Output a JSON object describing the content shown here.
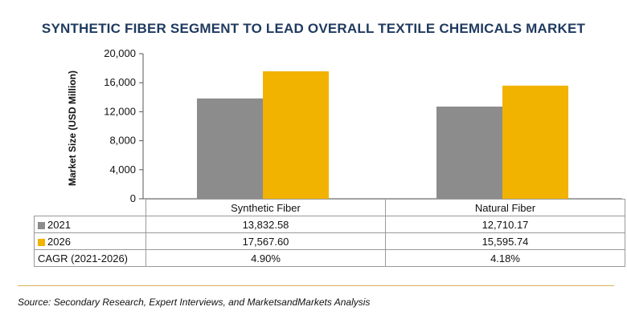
{
  "chart_data": {
    "type": "bar",
    "title": "SYNTHETIC FIBER SEGMENT TO LEAD OVERALL TEXTILE CHEMICALS MARKET",
    "xlabel": "",
    "ylabel": "Market Size (USD Million)",
    "categories": [
      "Synthetic Fiber",
      "Natural Fiber"
    ],
    "series": [
      {
        "name": "2021",
        "values": [
          13832.58,
          12710.17
        ],
        "color": "#8c8c8c"
      },
      {
        "name": "2026",
        "values": [
          17567.6,
          15595.74
        ],
        "color": "#f2b200"
      }
    ],
    "ylim": [
      0,
      20000
    ],
    "yticks": [
      "20,000",
      "16,000",
      "12,000",
      "8,000",
      "4,000",
      "0"
    ],
    "ytick_values": [
      20000,
      16000,
      12000,
      8000,
      4000,
      0
    ],
    "table": {
      "rows": [
        {
          "label": "2021",
          "values": [
            "13,832.58",
            "12,710.17"
          ]
        },
        {
          "label": "2026",
          "values": [
            "17,567.60",
            "15,595.74"
          ]
        },
        {
          "label": "CAGR (2021-2026)",
          "values": [
            "4.90%",
            "4.18%"
          ]
        }
      ]
    },
    "grid": false,
    "legend": "data table"
  },
  "source": "Source: Secondary Research, Expert Interviews, and MarketsandMarkets Analysis",
  "rule_color": "#d8b25a"
}
